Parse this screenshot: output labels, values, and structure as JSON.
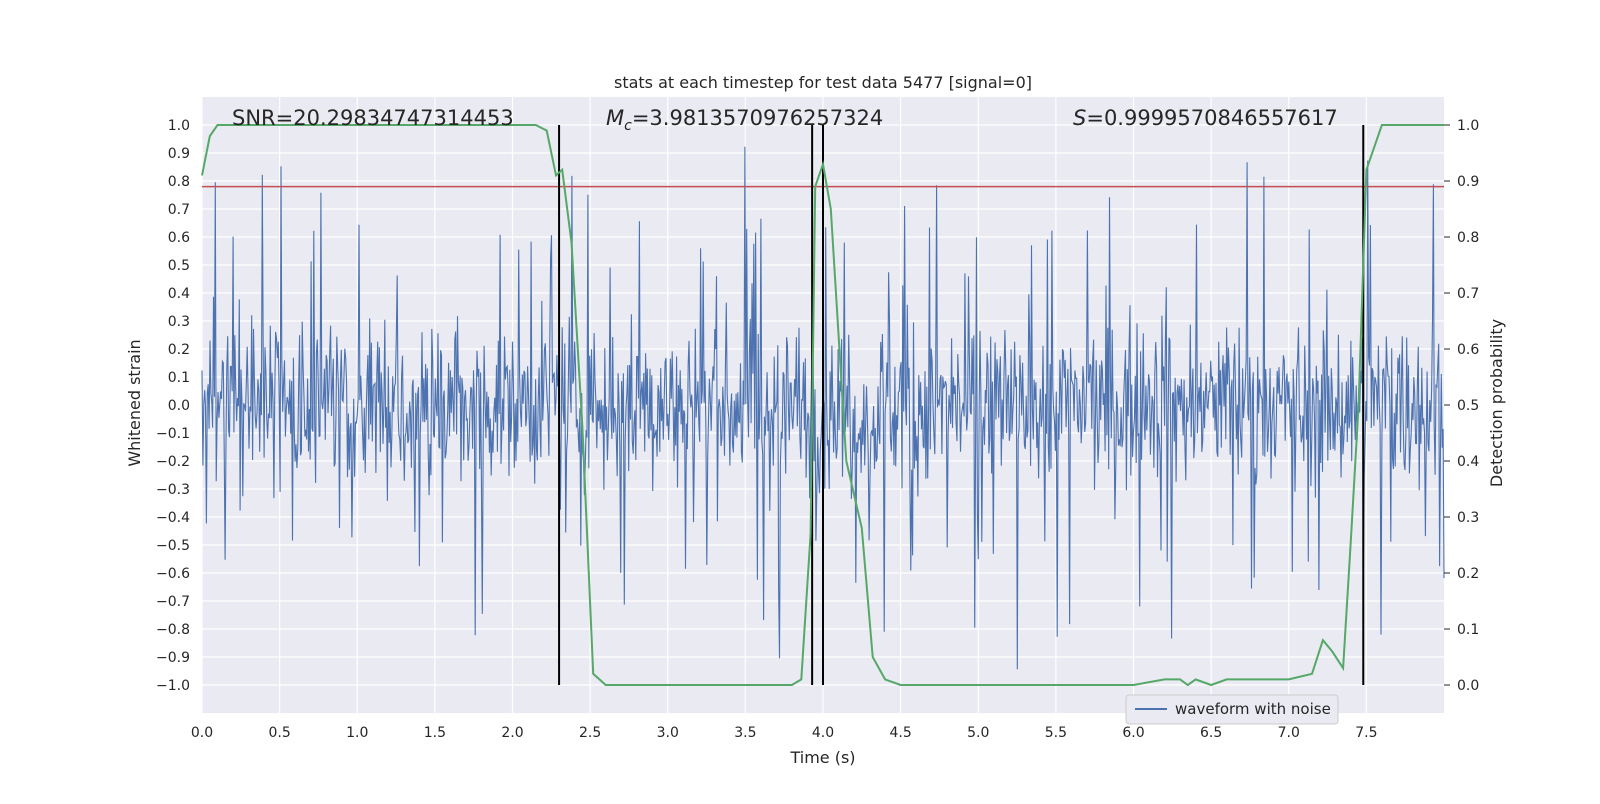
{
  "chart_data": {
    "type": "line",
    "title": "stats at each timestep for test data 5477 [signal=0]",
    "xlabel": "Time (s)",
    "ylabel_left": "Whitened strain",
    "ylabel_right": "Detection probability",
    "xlim": [
      0.0,
      8.0
    ],
    "ylim_left": [
      -1.1,
      1.1
    ],
    "ylim_right": [
      -0.05,
      1.05
    ],
    "x_ticks": [
      "0.0",
      "0.5",
      "1.0",
      "1.5",
      "2.0",
      "2.5",
      "3.0",
      "3.5",
      "4.0",
      "4.5",
      "5.0",
      "5.5",
      "6.0",
      "6.5",
      "7.0",
      "7.5"
    ],
    "y_left_ticks": [
      "1.0",
      "0.9",
      "0.8",
      "0.7",
      "0.6",
      "0.5",
      "0.4",
      "0.3",
      "0.2",
      "0.1",
      "0.0",
      "-0.1",
      "-0.2",
      "-0.3",
      "-0.4",
      "-0.5",
      "-0.6",
      "-0.7",
      "-0.8",
      "-0.9",
      "-1.0"
    ],
    "y_right_ticks": [
      "1.0",
      "0.9",
      "0.8",
      "0.7",
      "0.6",
      "0.5",
      "0.4",
      "0.3",
      "0.2",
      "0.1",
      "0.0"
    ],
    "annotations": {
      "snr": "SNR=20.29834747314453",
      "mc_symbol": "M",
      "mc_sub": "c",
      "mc_value": "=3.9813570976257324",
      "s_symbol": "S",
      "s_value": "=0.9999570846557617"
    },
    "threshold": {
      "value": 0.78,
      "axis": "left",
      "color": "#c44e52"
    },
    "event_lines": [
      2.3,
      3.93,
      4.0,
      7.48
    ],
    "series": [
      {
        "name": "waveform with noise",
        "axis": "left",
        "color": "#4c72b0",
        "description": "dense noisy strain, amplitude mostly within ±0.45 with spikes up to ±1.0"
      },
      {
        "name": "detection probability",
        "axis": "right",
        "color": "#55a868",
        "x": [
          0.0,
          0.05,
          0.1,
          0.2,
          0.5,
          1.0,
          1.5,
          2.0,
          2.15,
          2.22,
          2.28,
          2.32,
          2.38,
          2.45,
          2.52,
          2.6,
          2.8,
          3.0,
          3.5,
          3.8,
          3.86,
          3.92,
          3.95,
          4.0,
          4.05,
          4.15,
          4.25,
          4.32,
          4.4,
          4.5,
          5.0,
          5.5,
          6.0,
          6.2,
          6.3,
          6.35,
          6.4,
          6.5,
          6.6,
          7.0,
          7.15,
          7.22,
          7.28,
          7.35,
          7.4,
          7.45,
          7.5,
          7.6,
          7.7,
          8.0
        ],
        "values": [
          0.91,
          0.98,
          1.0,
          1.0,
          1.0,
          1.0,
          1.0,
          1.0,
          1.0,
          0.99,
          0.91,
          0.92,
          0.79,
          0.46,
          0.02,
          0.0,
          0.0,
          0.0,
          0.0,
          0.0,
          0.01,
          0.27,
          0.89,
          0.93,
          0.85,
          0.4,
          0.28,
          0.05,
          0.01,
          0.0,
          0.0,
          0.0,
          0.0,
          0.01,
          0.01,
          0.0,
          0.01,
          0.0,
          0.01,
          0.01,
          0.02,
          0.08,
          0.06,
          0.03,
          0.26,
          0.5,
          0.92,
          1.0,
          1.0,
          1.0
        ]
      }
    ],
    "legend": {
      "label": "waveform with noise",
      "placement": "bottom-right"
    }
  }
}
